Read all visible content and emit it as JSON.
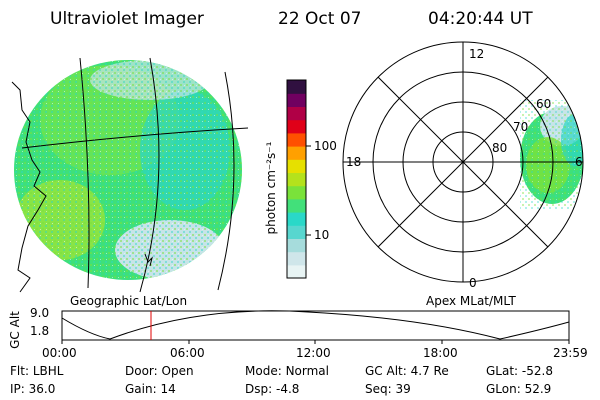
{
  "header": {
    "title": "Ultraviolet Imager",
    "date": "22 Oct 07",
    "time": "04:20:44 UT"
  },
  "colorbar": {
    "unit_label": "photon cm⁻²s⁻¹",
    "ticks": [
      "100",
      "10"
    ],
    "scale": "log",
    "colors": [
      "#e8f4f4",
      "#cfe6ea",
      "#a6dcdc",
      "#58d6cf",
      "#2ad8c8",
      "#42e07a",
      "#7ae23a",
      "#b4e21c",
      "#e6e000",
      "#ffa000",
      "#ff5000",
      "#e00018",
      "#b00046",
      "#700060",
      "#301040"
    ]
  },
  "left_panel": {
    "caption": "Geographic Lat/Lon",
    "fill_colors": [
      "#3ee07a",
      "#62e45a",
      "#9be53a",
      "#2cd6c4",
      "#c6e4e8"
    ]
  },
  "right_panel": {
    "caption": "Apex MLat/MLT",
    "mlt_labels": {
      "top": "12",
      "left": "18",
      "right": "6",
      "bottom": "0"
    },
    "lat_labels": [
      "60",
      "70",
      "80"
    ]
  },
  "timeline": {
    "ylabel": "GC Alt",
    "y_ticks": [
      "9.0",
      "1.8"
    ],
    "x_ticks": [
      "00:00",
      "06:00",
      "12:00",
      "18:00",
      "23:59"
    ],
    "marker_time": "04:20",
    "marker_color": "#e00000"
  },
  "info": {
    "row1": [
      {
        "k": "Flt:",
        "v": "LBHL"
      },
      {
        "k": "Door:",
        "v": "Open"
      },
      {
        "k": "Mode:",
        "v": "Normal"
      },
      {
        "k": "GC Alt:",
        "v": "4.7 Re"
      },
      {
        "k": "GLat:",
        "v": "-52.8"
      }
    ],
    "row2": [
      {
        "k": "IP:",
        "v": "36.0"
      },
      {
        "k": "Gain:",
        "v": "14"
      },
      {
        "k": "Dsp:",
        "v": "-4.8"
      },
      {
        "k": "Seq:",
        "v": "39"
      },
      {
        "k": "GLon:",
        "v": "52.9"
      }
    ]
  }
}
